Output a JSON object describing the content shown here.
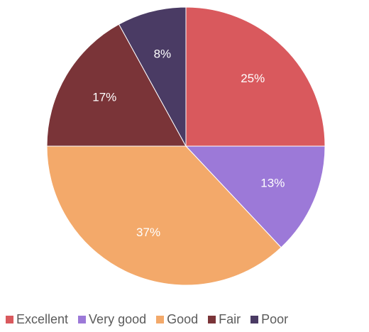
{
  "chart_data": {
    "type": "pie",
    "title": "",
    "slices": [
      {
        "label": "Excellent",
        "value": 25,
        "display": "25%",
        "color": "#d9595d"
      },
      {
        "label": "Very good",
        "value": 13,
        "display": "13%",
        "color": "#9c79d8"
      },
      {
        "label": "Good",
        "value": 37,
        "display": "37%",
        "color": "#f3a96a"
      },
      {
        "label": "Fair",
        "value": 17,
        "display": "17%",
        "color": "#7a3438"
      },
      {
        "label": "Poor",
        "value": 8,
        "display": "8%",
        "color": "#4a3b64"
      }
    ],
    "legend_position": "bottom"
  }
}
